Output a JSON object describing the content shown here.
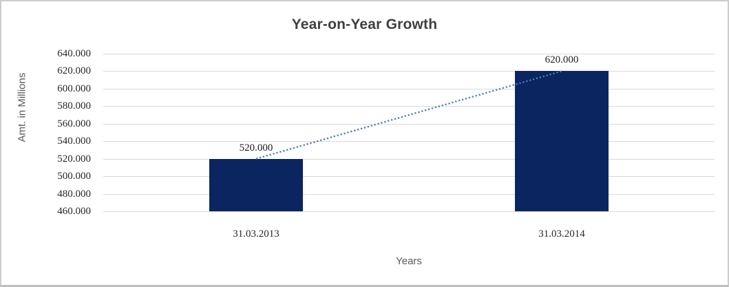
{
  "window": {
    "background": "#ffffff",
    "border_color": "#cccccc"
  },
  "chart_data": {
    "type": "bar",
    "title": "Year-on-Year Growth",
    "categories": [
      "31.03.2013",
      "31.03.2014"
    ],
    "values": [
      520000,
      620000
    ],
    "value_labels": [
      "520.000",
      "620.000"
    ],
    "xlabel": "Years",
    "ylabel": "Amt. in Millions",
    "ylim": [
      460000,
      640000
    ],
    "ytick_step": 20000,
    "ytick_labels": [
      "640.000",
      "620.000",
      "600.000",
      "580.000",
      "560.000",
      "540.000",
      "520.000",
      "500.000",
      "480.000",
      "460.000"
    ],
    "grid": true,
    "legend": false,
    "bar_color": "#0a2560",
    "gridline_color": "#d9d9d9",
    "title_color": "#404040",
    "tick_label_color": "#262626",
    "axis_title_color": "#595959",
    "trendline": {
      "type": "linear",
      "style": "dotted",
      "color": "#4a7ebb",
      "from_value": 520000,
      "to_value": 620000
    }
  }
}
